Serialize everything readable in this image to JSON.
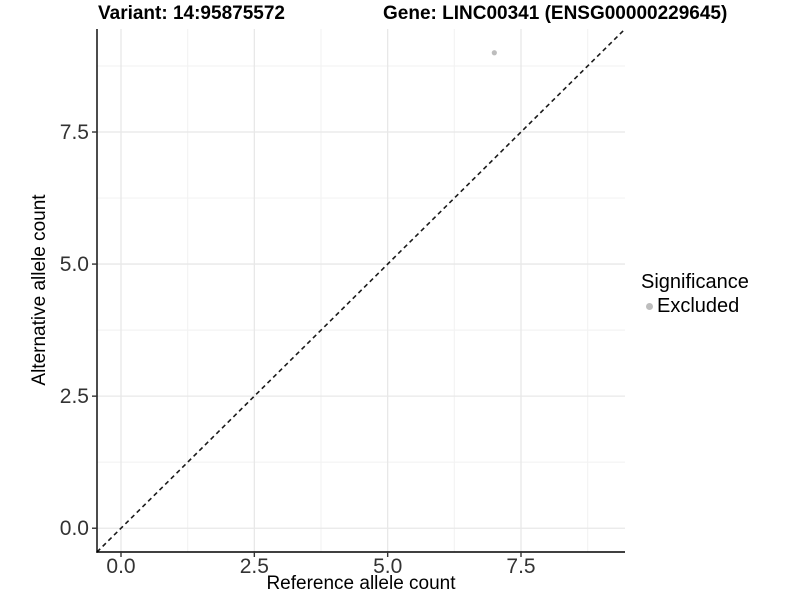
{
  "chart_data": {
    "type": "scatter",
    "title_left": "Variant: 14:95875572",
    "title_right": "Gene: LINC00341 (ENSG00000229645)",
    "xlabel": "Reference allele count",
    "ylabel": "Alternative allele count",
    "xlim": [
      -0.45,
      9.45
    ],
    "ylim": [
      -0.45,
      9.45
    ],
    "x_major_ticks": [
      0,
      2.5,
      5,
      7.5
    ],
    "x_tick_labels": [
      "0.0",
      "2.5",
      "5.0",
      "7.5"
    ],
    "y_major_ticks": [
      0,
      2.5,
      5,
      7.5
    ],
    "y_tick_labels": [
      "0.0",
      "2.5",
      "5.0",
      "7.5"
    ],
    "minor_ticks": [
      1.25,
      3.75,
      6.25,
      8.75
    ],
    "grid": "major+minor horizontal and vertical",
    "reference_line": {
      "kind": "identity y=x",
      "style": "dashed",
      "color": "#1a1a1a"
    },
    "series": [
      {
        "name": "Excluded",
        "color": "#bdbdbd",
        "points": [
          {
            "x": 7,
            "y": 9
          }
        ]
      }
    ],
    "legend": {
      "title": "Significance",
      "position": "right",
      "items": [
        {
          "label": "Excluded",
          "color": "#bdbdbd"
        }
      ]
    }
  }
}
